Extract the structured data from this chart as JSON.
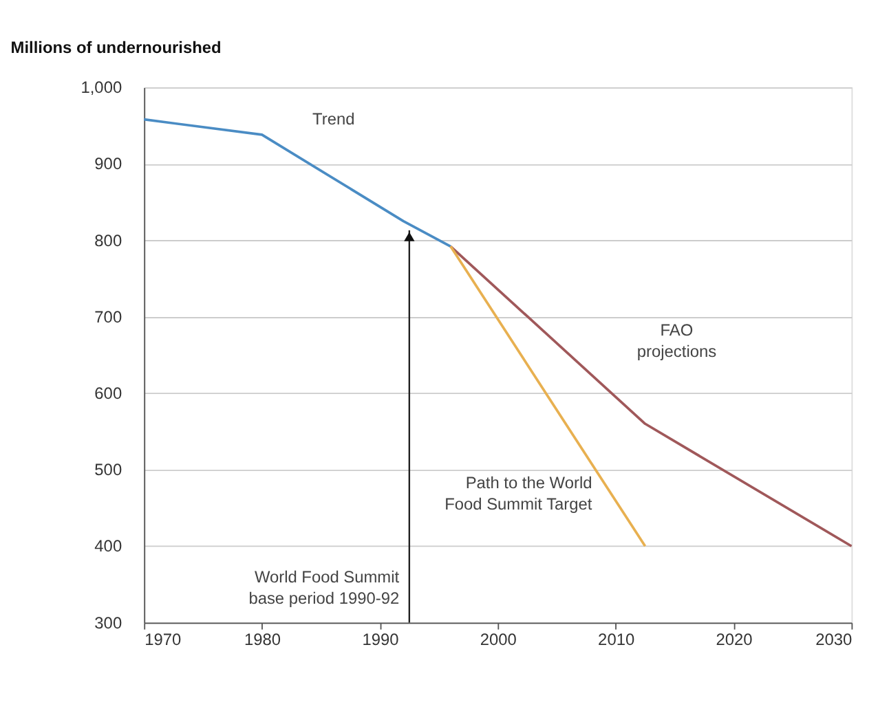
{
  "chart_data": {
    "type": "line",
    "ylabel": "Millions of undernourished",
    "series": [
      {
        "name": "Trend",
        "color": "#4a8cc4",
        "x": [
          1970,
          1980,
          1992,
          1996
        ],
        "values": [
          958,
          938,
          825,
          792
        ]
      },
      {
        "name": "FAO projections",
        "color": "#a0585a",
        "x": [
          1996,
          2012.5,
          2030
        ],
        "values": [
          792,
          560,
          400
        ]
      },
      {
        "name": "Path to the World Food Summit Target",
        "color": "#e8b050",
        "x": [
          1996,
          2012.5
        ],
        "values": [
          792,
          400
        ]
      }
    ],
    "annotations": [
      {
        "text": "World Food Summit base period 1990-92",
        "x": 1992.5,
        "y": 813
      }
    ],
    "xlim": [
      1970,
      2030
    ],
    "xticks": [
      1970,
      1980,
      1990,
      2000,
      2010,
      2020,
      2030
    ],
    "ylim": [
      300,
      1000
    ],
    "yticks": [
      300,
      400,
      500,
      600,
      700,
      800,
      900,
      {
        "value": 1000,
        "label": "1,000"
      }
    ],
    "grid": "y",
    "legend": false,
    "marker": "none",
    "line_style": "solid"
  }
}
